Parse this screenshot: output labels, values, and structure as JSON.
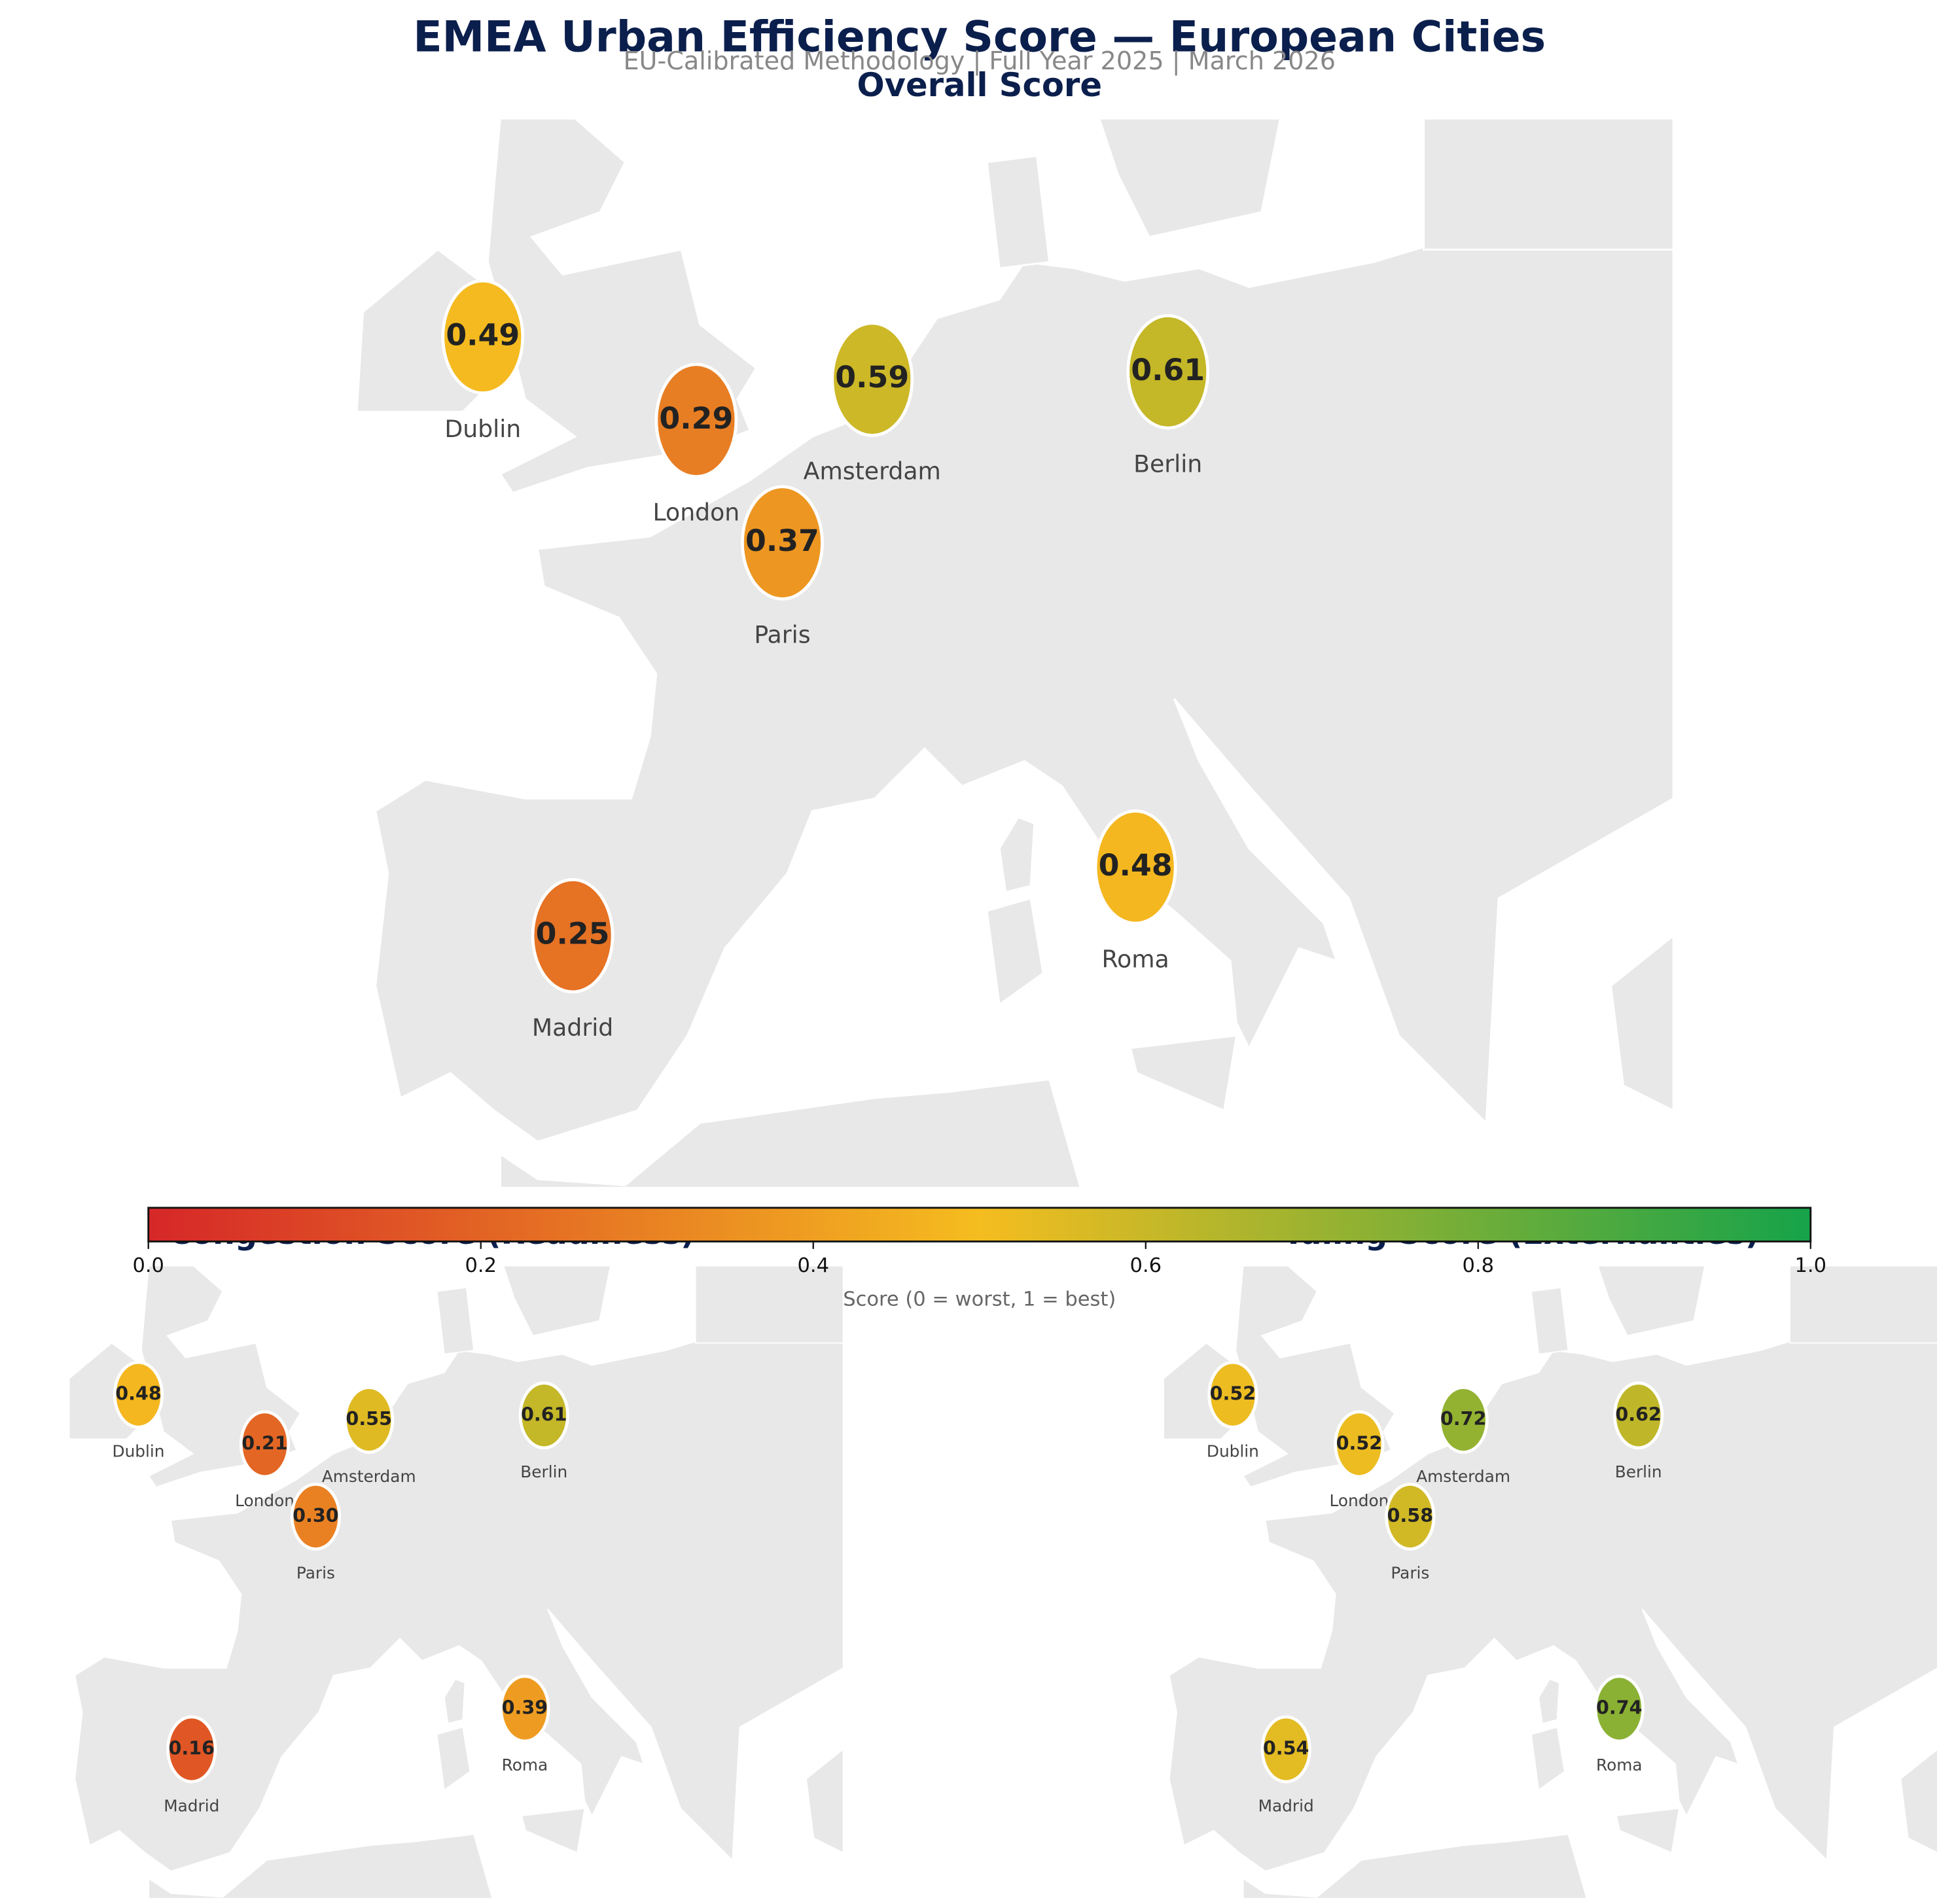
{
  "title": "EMEA Urban Efficiency Score — European Cities",
  "subtitle": "EU-Calibrated Methodology  |  Full Year 2025  |  March 2026",
  "colorbar": {
    "label": "Score (0 = worst, 1 = best)",
    "lim": [
      0,
      1
    ],
    "ticks": [
      {
        "value": 0,
        "label": "0.0"
      },
      0.2,
      0.4,
      0.6,
      0.8,
      {
        "value": 1,
        "label": "1.0"
      }
    ],
    "colors": [
      "#d62728",
      "#f5bd1f",
      "#16a34a"
    ]
  },
  "chart_data": [
    {
      "type": "map",
      "title": "Overall Score",
      "cities": [
        "Dublin",
        "London",
        "Amsterdam",
        "Paris",
        "Berlin",
        "Roma",
        "Madrid"
      ],
      "values": [
        0.49,
        0.29,
        0.59,
        0.37,
        0.61,
        0.48,
        0.25
      ],
      "value_labels": [
        "0.49",
        "0.29",
        "0.59",
        "0.37",
        "0.61",
        "0.48",
        "0.25"
      ]
    },
    {
      "type": "map",
      "title": "Congestion Score (Readiness)",
      "cities": [
        "Dublin",
        "London",
        "Amsterdam",
        "Paris",
        "Berlin",
        "Roma",
        "Madrid"
      ],
      "values": [
        0.48,
        0.21,
        0.55,
        0.3,
        0.61,
        0.39,
        0.16
      ],
      "value_labels": [
        "0.48",
        "0.21",
        "0.55",
        "0.30",
        "0.61",
        "0.39",
        "0.16"
      ]
    },
    {
      "type": "map",
      "title": "Idling Score (Externalities)",
      "cities": [
        "Dublin",
        "London",
        "Amsterdam",
        "Paris",
        "Berlin",
        "Roma",
        "Madrid"
      ],
      "values": [
        0.52,
        0.52,
        0.72,
        0.58,
        0.62,
        0.74,
        0.54
      ],
      "value_labels": [
        "0.52",
        "0.52",
        "0.72",
        "0.58",
        "0.62",
        "0.74",
        "0.54"
      ]
    }
  ]
}
